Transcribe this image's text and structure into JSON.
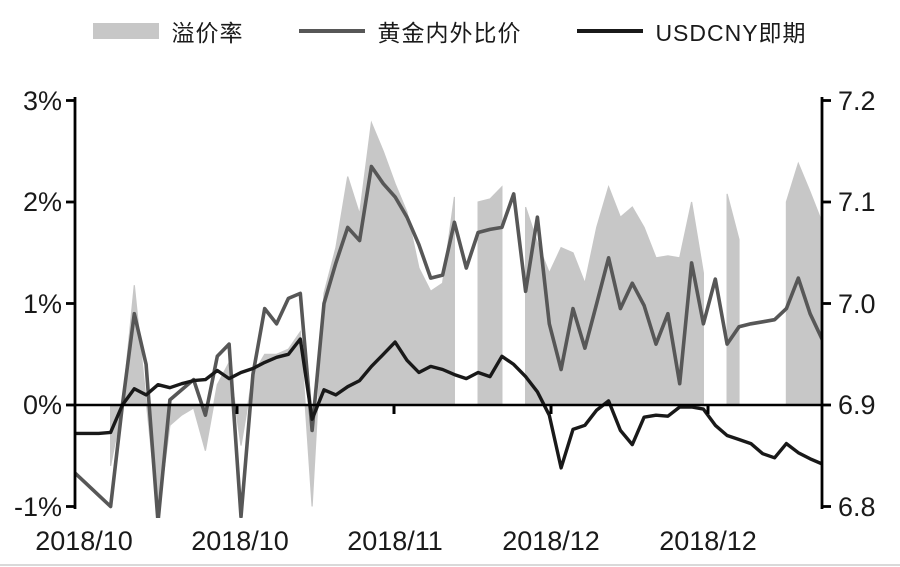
{
  "legend": {
    "items": [
      {
        "label": "溢价率",
        "type": "area",
        "color": "#c7c7c7"
      },
      {
        "label": "黄金内外比价",
        "type": "line",
        "color": "#575757"
      },
      {
        "label": "USDCNY即期",
        "type": "line",
        "color": "#191919"
      }
    ]
  },
  "chart_data": {
    "type": "combo-area-line",
    "title": "",
    "x_tick_labels": [
      "2018/10",
      "2018/10",
      "2018/11",
      "2018/12",
      "2018/12"
    ],
    "left_axis": {
      "tick_labels": [
        "3%",
        "2%",
        "1%",
        "0%",
        "-1%"
      ],
      "values": [
        3,
        2,
        1,
        0,
        -1
      ],
      "range": [
        -1,
        3
      ]
    },
    "right_axis": {
      "tick_labels": [
        "7.2",
        "7.1",
        "7.0",
        "6.9",
        "6.8"
      ],
      "values": [
        7.2,
        7.1,
        7.0,
        6.9,
        6.8
      ],
      "range": [
        6.8,
        7.2
      ]
    },
    "grid": false,
    "legend_position": "top",
    "series": [
      {
        "name": "溢价率",
        "type": "area",
        "axis": "left",
        "unit": "%",
        "color": "#c7c7c7",
        "values": [
          null,
          null,
          null,
          -0.6,
          0.0,
          1.18,
          0.05,
          -1.1,
          -0.2,
          -0.1,
          -0.03,
          -0.45,
          0.2,
          0.42,
          -0.4,
          0.3,
          0.5,
          0.5,
          0.55,
          0.72,
          -1.0,
          1.1,
          1.55,
          2.25,
          1.88,
          2.78,
          2.5,
          2.18,
          1.9,
          1.35,
          1.12,
          1.2,
          2.05,
          null,
          2.0,
          2.03,
          2.15,
          null,
          1.95,
          1.6,
          1.3,
          1.55,
          1.5,
          1.2,
          1.75,
          2.15,
          1.85,
          1.95,
          1.75,
          1.45,
          1.47,
          1.45,
          2.0,
          1.3,
          null,
          2.08,
          1.63,
          null,
          null,
          null,
          2.0,
          2.38,
          2.1,
          1.8
        ]
      },
      {
        "name": "黄金内外比价",
        "type": "line",
        "axis": "right",
        "color": "#575757",
        "values": [
          6.833,
          6.822,
          6.811,
          6.8,
          6.9,
          6.99,
          6.94,
          6.785,
          6.905,
          6.915,
          6.925,
          6.89,
          6.948,
          6.96,
          6.79,
          6.93,
          6.995,
          6.98,
          7.005,
          7.01,
          6.875,
          7.0,
          7.04,
          7.075,
          7.062,
          7.135,
          7.118,
          7.105,
          7.085,
          7.058,
          7.025,
          7.028,
          7.08,
          7.035,
          7.07,
          7.073,
          7.075,
          7.108,
          7.012,
          7.085,
          6.98,
          6.935,
          6.995,
          6.956,
          7.0,
          7.045,
          6.995,
          7.02,
          6.998,
          6.96,
          6.99,
          6.921,
          7.04,
          6.98,
          7.024,
          6.96,
          6.977,
          6.98,
          6.982,
          6.984,
          6.995,
          7.025,
          6.99,
          6.965
        ]
      },
      {
        "name": "USDCNY即期",
        "type": "line",
        "axis": "right",
        "color": "#191919",
        "values": [
          6.872,
          6.872,
          6.872,
          6.873,
          6.9,
          6.916,
          6.91,
          6.92,
          6.917,
          6.921,
          6.924,
          6.925,
          6.934,
          6.926,
          6.932,
          6.936,
          6.942,
          6.947,
          6.95,
          6.965,
          6.886,
          6.915,
          6.91,
          6.918,
          6.924,
          6.938,
          6.95,
          6.962,
          6.944,
          6.932,
          6.938,
          6.935,
          6.93,
          6.926,
          6.932,
          6.928,
          6.948,
          6.94,
          6.928,
          6.913,
          6.89,
          6.838,
          6.876,
          6.88,
          6.895,
          6.904,
          6.875,
          6.861,
          6.888,
          6.89,
          6.889,
          6.898,
          6.898,
          6.896,
          6.88,
          6.87,
          6.866,
          6.862,
          6.852,
          6.848,
          6.862,
          6.853,
          6.847,
          6.842
        ]
      }
    ]
  }
}
